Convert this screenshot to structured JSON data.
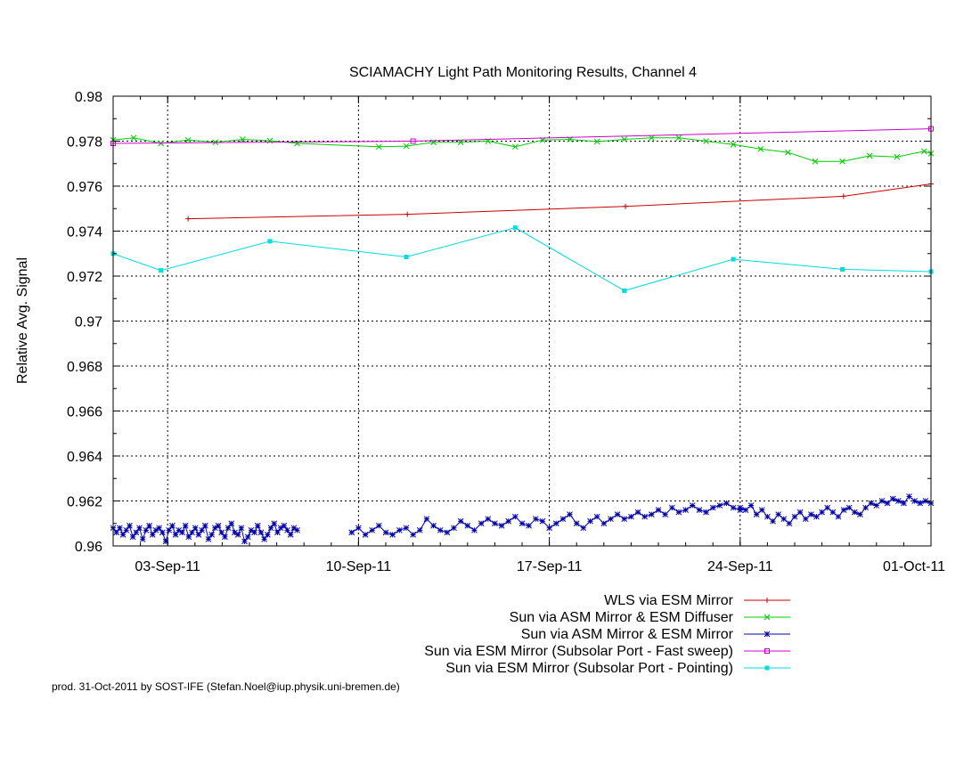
{
  "footer": "prod. 31-Oct-2011 by SOST-IFE (Stefan.Noel@iup.physik.uni-bremen.de)",
  "chart_data": {
    "type": "line",
    "title": "SCIAMACHY Light Path Monitoring Results, Channel 4",
    "xlabel": "",
    "ylabel": "Relative Avg. Signal",
    "xlim": [
      "2011-09-01",
      "2011-10-01"
    ],
    "ylim": [
      0.96,
      0.98
    ],
    "grid": true,
    "legend_position": "bottom-right",
    "x_ticks": [
      {
        "x": "2011-09-03",
        "label": "03-Sep-11"
      },
      {
        "x": "2011-09-10",
        "label": "10-Sep-11"
      },
      {
        "x": "2011-09-17",
        "label": "17-Sep-11"
      },
      {
        "x": "2011-09-24",
        "label": "24-Sep-11"
      },
      {
        "x": "2011-10-01",
        "label": "01-Oct-11"
      }
    ],
    "y_ticks": [
      {
        "y": 0.96,
        "label": "0.96"
      },
      {
        "y": 0.962,
        "label": "0.962"
      },
      {
        "y": 0.964,
        "label": "0.964"
      },
      {
        "y": 0.966,
        "label": "0.966"
      },
      {
        "y": 0.968,
        "label": "0.968"
      },
      {
        "y": 0.97,
        "label": "0.97"
      },
      {
        "y": 0.972,
        "label": "0.972"
      },
      {
        "y": 0.974,
        "label": "0.974"
      },
      {
        "y": 0.976,
        "label": "0.976"
      },
      {
        "y": 0.978,
        "label": "0.978"
      },
      {
        "y": 0.98,
        "label": "0.98"
      }
    ],
    "series": [
      {
        "name": "WLS via ESM Mirror",
        "color": "#cc0000",
        "marker": "plus",
        "points": [
          [
            "2011-09-03 18:00",
            0.97455
          ],
          [
            "2011-09-11 19:00",
            0.97475
          ],
          [
            "2011-09-19 19:00",
            0.9751
          ],
          [
            "2011-09-27 19:00",
            0.97555
          ],
          [
            "2011-10-01 00:00",
            0.9761
          ]
        ]
      },
      {
        "name": "Sun via ASM Mirror & ESM Diffuser",
        "color": "#00cc00",
        "marker": "cross",
        "points": [
          [
            "2011-09-01 00:00",
            0.97805
          ],
          [
            "2011-09-01 18:00",
            0.97815
          ],
          [
            "2011-09-02 18:00",
            0.9779
          ],
          [
            "2011-09-03 18:00",
            0.97805
          ],
          [
            "2011-09-04 18:00",
            0.97795
          ],
          [
            "2011-09-05 18:00",
            0.97808
          ],
          [
            "2011-09-06 18:00",
            0.97802
          ],
          [
            "2011-09-07 18:00",
            0.9779
          ],
          [
            "2011-09-10 18:00",
            0.97775
          ],
          [
            "2011-09-11 18:00",
            0.97778
          ],
          [
            "2011-09-12 18:00",
            0.97795
          ],
          [
            "2011-09-13 18:00",
            0.97795
          ],
          [
            "2011-09-14 18:00",
            0.978
          ],
          [
            "2011-09-15 18:00",
            0.97775
          ],
          [
            "2011-09-16 18:00",
            0.97805
          ],
          [
            "2011-09-17 18:00",
            0.97808
          ],
          [
            "2011-09-18 18:00",
            0.97798
          ],
          [
            "2011-09-19 18:00",
            0.97808
          ],
          [
            "2011-09-20 18:00",
            0.97815
          ],
          [
            "2011-09-21 18:00",
            0.97815
          ],
          [
            "2011-09-22 18:00",
            0.978
          ],
          [
            "2011-09-23 18:00",
            0.97785
          ],
          [
            "2011-09-24 18:00",
            0.97765
          ],
          [
            "2011-09-25 18:00",
            0.9775
          ],
          [
            "2011-09-26 18:00",
            0.9771
          ],
          [
            "2011-09-27 18:00",
            0.9771
          ],
          [
            "2011-09-28 18:00",
            0.97735
          ],
          [
            "2011-09-29 18:00",
            0.9773
          ],
          [
            "2011-09-30 18:00",
            0.97755
          ],
          [
            "2011-10-01 00:00",
            0.97745
          ]
        ]
      },
      {
        "name": "Sun via ASM Mirror & ESM Mirror",
        "color": "#0000aa",
        "marker": "star",
        "segments": [
          {
            "start": "2011-09-01 00:00",
            "end": "2011-09-07 18:00",
            "values": [
              0.9608,
              0.9606,
              0.9608,
              0.9605,
              0.9607,
              0.9609,
              0.9604,
              0.9606,
              0.9608,
              0.9603,
              0.9607,
              0.9609,
              0.9605,
              0.9607,
              0.9608,
              0.9606,
              0.9602,
              0.9607,
              0.9609,
              0.9605,
              0.9607,
              0.9606,
              0.9609,
              0.9604,
              0.9606,
              0.9608,
              0.9605,
              0.9607,
              0.9609,
              0.9603,
              0.9605,
              0.9608,
              0.9609,
              0.9606,
              0.9604,
              0.9608,
              0.961,
              0.9606,
              0.9605,
              0.9608,
              0.9602,
              0.9604,
              0.9607,
              0.9606,
              0.9609,
              0.9606,
              0.9603,
              0.9605,
              0.9608,
              0.961,
              0.9606,
              0.9608,
              0.9609,
              0.9607,
              0.9605,
              0.9608,
              0.9607
            ]
          },
          {
            "start": "2011-09-09 18:00",
            "end": "2011-09-24 00:00",
            "values": [
              0.9606,
              0.9608,
              0.9605,
              0.9607,
              0.9609,
              0.9606,
              0.9605,
              0.9607,
              0.9608,
              0.9605,
              0.9607,
              0.9612,
              0.9609,
              0.9607,
              0.9606,
              0.9608,
              0.9611,
              0.9609,
              0.9607,
              0.961,
              0.9612,
              0.961,
              0.9609,
              0.9611,
              0.9613,
              0.961,
              0.9609,
              0.9612,
              0.9611,
              0.9608,
              0.961,
              0.9612,
              0.9614,
              0.961,
              0.9608,
              0.9611,
              0.9613,
              0.961,
              0.9612,
              0.9614,
              0.9612,
              0.9613,
              0.9615,
              0.9613,
              0.9614,
              0.9616,
              0.9614,
              0.9617,
              0.9615,
              0.9616,
              0.9618,
              0.9616,
              0.9615,
              0.9617,
              0.9618,
              0.9619,
              0.9617,
              0.9616
            ]
          },
          {
            "start": "2011-09-24 00:00",
            "end": "2011-10-01 00:00",
            "values": [
              0.9617,
              0.9616,
              0.9618,
              0.9614,
              0.9616,
              0.9613,
              0.9611,
              0.9614,
              0.9612,
              0.961,
              0.9613,
              0.9615,
              0.9612,
              0.9614,
              0.9613,
              0.9615,
              0.9617,
              0.9615,
              0.9613,
              0.9616,
              0.9617,
              0.9615,
              0.9614,
              0.9617,
              0.9619,
              0.9618,
              0.962,
              0.9619,
              0.9621,
              0.962,
              0.9619,
              0.9622,
              0.962,
              0.9619,
              0.962,
              0.9619
            ]
          }
        ]
      },
      {
        "name": "Sun via ESM Mirror (Subsolar Port - Fast sweep)",
        "color": "#cc00cc",
        "marker": "square-open",
        "points": [
          [
            "2011-09-01 00:00",
            0.9779
          ],
          [
            "2011-09-12 00:00",
            0.978
          ],
          [
            "2011-10-01 00:00",
            0.97855
          ]
        ]
      },
      {
        "name": "Sun via ESM Mirror (Subsolar Port - Pointing)",
        "color": "#00dddd",
        "marker": "square-filled",
        "points": [
          [
            "2011-09-01 00:00",
            0.973
          ],
          [
            "2011-09-02 18:00",
            0.97225
          ],
          [
            "2011-09-06 18:00",
            0.97355
          ],
          [
            "2011-09-11 18:00",
            0.97285
          ],
          [
            "2011-09-15 18:00",
            0.97415
          ],
          [
            "2011-09-19 18:00",
            0.97135
          ],
          [
            "2011-09-23 18:00",
            0.97275
          ],
          [
            "2011-09-27 18:00",
            0.9723
          ],
          [
            "2011-10-01 00:00",
            0.9722
          ]
        ]
      }
    ]
  }
}
